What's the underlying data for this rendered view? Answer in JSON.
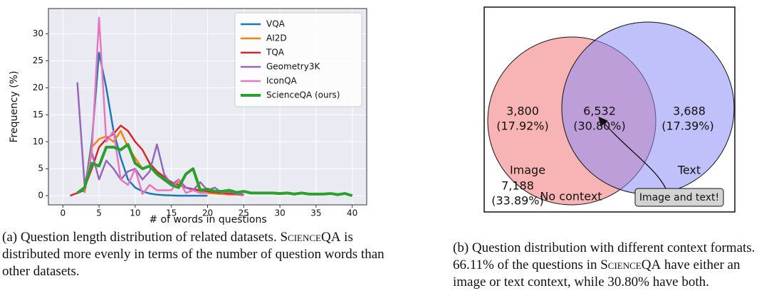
{
  "chart_data": {
    "type": "line",
    "xlabel": "# of words in questions",
    "ylabel": "Frequency (%)",
    "xlim": [
      -2,
      42
    ],
    "ylim": [
      -1.7,
      34.7
    ],
    "xticks": [
      0,
      5,
      10,
      15,
      20,
      25,
      30,
      35,
      40
    ],
    "yticks": [
      0,
      5,
      10,
      15,
      20,
      25,
      30
    ],
    "grid": true,
    "legend": "upper right",
    "series": [
      {
        "name": "VQA",
        "color": "#1f77b4",
        "x": [
          2,
          3,
          4,
          5,
          6,
          7,
          8,
          9,
          10,
          11,
          12,
          13,
          14,
          15,
          16,
          17,
          18,
          19,
          20
        ],
        "values": [
          0.5,
          1,
          10,
          26.5,
          20,
          12,
          7,
          3,
          1.5,
          0.8,
          0.4,
          0.2,
          0.1,
          0.05,
          0,
          0,
          0,
          0,
          0
        ]
      },
      {
        "name": "AI2D",
        "color": "#ff7f0e",
        "x": [
          3,
          4,
          5,
          6,
          7,
          8,
          9,
          10,
          11,
          12,
          13,
          14,
          15,
          16,
          17,
          18,
          19,
          20,
          21,
          22,
          23,
          24,
          25
        ],
        "values": [
          0.5,
          9,
          10.5,
          11,
          10,
          12,
          9,
          7,
          5,
          5.5,
          4,
          3,
          2,
          2.5,
          1.5,
          1,
          0.8,
          0.5,
          0.4,
          0.3,
          0.2,
          0.2,
          0.1
        ]
      },
      {
        "name": "TQA",
        "color": "#d62728",
        "x": [
          1,
          2,
          3,
          4,
          5,
          6,
          7,
          8,
          9,
          10,
          11,
          12,
          13,
          14,
          15,
          16,
          17,
          18,
          19,
          20,
          21,
          22,
          23,
          24,
          25
        ],
        "values": [
          0,
          0.5,
          1.5,
          5,
          9,
          10.5,
          11.5,
          13,
          12,
          10,
          8.5,
          6,
          4.5,
          3.5,
          2.5,
          2,
          1.5,
          1.2,
          1,
          0.8,
          0.6,
          0.5,
          0.4,
          0.3,
          0.2
        ]
      },
      {
        "name": "Geometry3K",
        "color": "#9467bd",
        "x": [
          2,
          3,
          4,
          5,
          6,
          7,
          8,
          9,
          10,
          11,
          12,
          13,
          14,
          15,
          16,
          17,
          18,
          19,
          20,
          21,
          22,
          23,
          24,
          25
        ],
        "values": [
          21,
          2,
          8,
          3,
          6.5,
          5,
          3,
          4.5,
          5,
          3,
          4.5,
          9.5,
          4,
          2,
          3,
          1.5,
          1,
          2.5,
          1,
          1.5,
          0.5,
          0.8,
          0.3,
          0.3
        ]
      },
      {
        "name": "IconQA",
        "color": "#e377c2",
        "x": [
          3,
          4,
          5,
          6,
          7,
          8,
          9,
          10,
          11,
          12,
          13,
          14,
          15,
          16,
          17,
          18,
          19,
          20
        ],
        "values": [
          1,
          8,
          33,
          10,
          12,
          3,
          2,
          5,
          0.3,
          2,
          1,
          1,
          1,
          3,
          0.5,
          1,
          0.5,
          0.5
        ]
      },
      {
        "name": "ScienceQA (ours)",
        "color": "#2ca02c",
        "x": [
          2,
          3,
          4,
          5,
          6,
          7,
          8,
          9,
          10,
          11,
          12,
          13,
          14,
          15,
          16,
          17,
          18,
          19,
          20,
          21,
          22,
          23,
          24,
          25,
          26,
          27,
          28,
          29,
          30,
          31,
          32,
          33,
          34,
          35,
          36,
          37,
          38,
          39,
          40
        ],
        "values": [
          0.5,
          1.5,
          6,
          5.5,
          9,
          9,
          8.5,
          9.5,
          6,
          5,
          5.5,
          4,
          3,
          2,
          1.5,
          4,
          5,
          1,
          1.2,
          0.8,
          0.8,
          1,
          0.6,
          0.8,
          0.5,
          0.5,
          0.5,
          0.5,
          0.4,
          0.5,
          0.3,
          0.5,
          0.3,
          0.3,
          0.3,
          0.4,
          0.2,
          0.4,
          0
        ]
      }
    ]
  },
  "venn": {
    "left": {
      "count": "3,800",
      "percent": "(17.92%)",
      "label": "Image"
    },
    "both": {
      "count": "6,532",
      "percent": "(30.80%)"
    },
    "right": {
      "count": "3,688",
      "percent": "(17.39%)",
      "label": "Text"
    },
    "outside": {
      "count": "7,188",
      "percent": "(33.89%)",
      "label": "No context"
    },
    "callout": "Image and text!"
  },
  "captions": {
    "a": [
      "(a) Question length distribution of related datasets. ",
      "ScienceQA",
      " is distributed more evenly in terms of the number of question words than other datasets."
    ],
    "b": [
      "(b) Question distribution with different context formats. 66.11% of the questions in ",
      "ScienceQA",
      " have either an image or text context, while 30.80% have both."
    ]
  }
}
